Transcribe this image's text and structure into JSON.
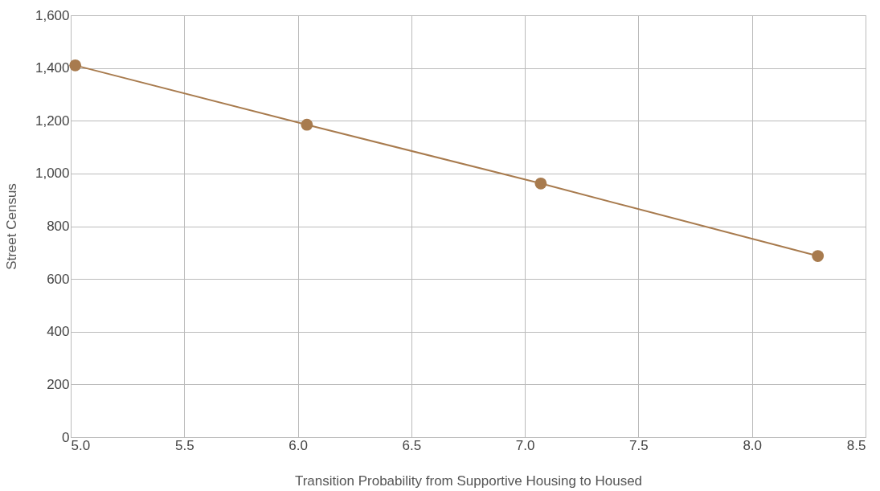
{
  "chart_data": {
    "type": "line",
    "xlabel": "Transition Probability from Supportive Housing to Housed",
    "ylabel": "Street Census",
    "x": [
      5.02,
      6.04,
      7.07,
      8.29
    ],
    "series": [
      {
        "color": "#a87b4e",
        "values": [
          1410,
          1185,
          962,
          687
        ]
      }
    ],
    "xlim": [
      5.0,
      8.5
    ],
    "xticks": [
      {
        "value": 5.0,
        "label": "5.0"
      },
      {
        "value": 5.5,
        "label": "5.5"
      },
      {
        "value": 6.0,
        "label": "6.0"
      },
      {
        "value": 6.5,
        "label": "6.5"
      },
      {
        "value": 7.0,
        "label": "7.0"
      },
      {
        "value": 7.5,
        "label": "7.5"
      },
      {
        "value": 8.0,
        "label": "8.0"
      },
      {
        "value": 8.5,
        "label": "8.5"
      }
    ],
    "ylim": [
      0,
      1600
    ],
    "yticks": [
      0,
      {
        "value": 200,
        "label": "200"
      },
      {
        "value": 400,
        "label": "400"
      },
      {
        "value": 600,
        "label": "600"
      },
      {
        "value": 800,
        "label": "800"
      },
      {
        "value": 1000,
        "label": "1,000"
      },
      {
        "value": 1200,
        "label": "1,200"
      },
      {
        "value": 1400,
        "label": "1,400"
      },
      {
        "value": 1600,
        "label": "1,600"
      }
    ],
    "grid": true,
    "marker": "circle",
    "line_style": "solid"
  }
}
